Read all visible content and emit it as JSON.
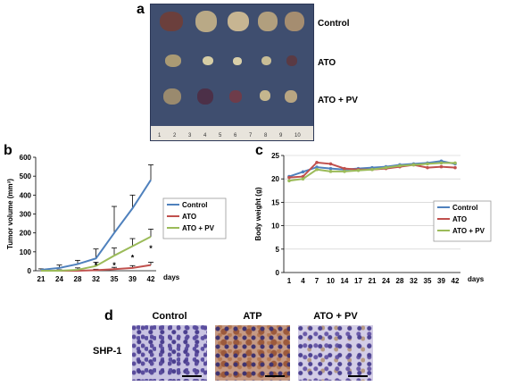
{
  "panels": {
    "a": "a",
    "b": "b",
    "c": "c",
    "d": "d"
  },
  "photo_panel": {
    "groups": [
      "Control",
      "ATO",
      "ATO + PV"
    ],
    "ruler_numbers": [
      "1",
      "2",
      "3",
      "4",
      "5",
      "6",
      "7",
      "8",
      "9",
      "10"
    ]
  },
  "chart_data": [
    {
      "type": "line",
      "ylabel": "Tumor volume (mm³)",
      "xlabel": "days",
      "x": [
        21,
        24,
        28,
        32,
        35,
        39,
        42
      ],
      "ylim": [
        0,
        600
      ],
      "yticks": [
        0,
        100,
        200,
        300,
        400,
        500,
        600
      ],
      "series": [
        {
          "name": "Control",
          "color": "#4f81bd",
          "values": [
            5,
            15,
            35,
            65,
            200,
            330,
            480
          ],
          "errors": [
            5,
            15,
            20,
            50,
            140,
            70,
            80
          ]
        },
        {
          "name": "ATO",
          "color": "#c0504d",
          "values": [
            0,
            0,
            0,
            3,
            8,
            15,
            30
          ],
          "errors": [
            0,
            0,
            0,
            5,
            10,
            12,
            15
          ]
        },
        {
          "name": "ATO + PV",
          "color": "#9bbb59",
          "values": [
            0,
            0,
            5,
            25,
            80,
            130,
            180
          ],
          "errors": [
            0,
            5,
            10,
            20,
            40,
            40,
            40
          ]
        }
      ],
      "annotations": [
        "*",
        "*",
        "*",
        "*"
      ]
    },
    {
      "type": "line",
      "ylabel": "Body weight (g)",
      "xlabel": "days",
      "x": [
        1,
        4,
        7,
        10,
        14,
        17,
        21,
        24,
        28,
        32,
        35,
        39,
        42
      ],
      "ylim": [
        0,
        25
      ],
      "yticks": [
        0,
        5,
        10,
        15,
        20,
        25
      ],
      "series": [
        {
          "name": "Control",
          "color": "#4f81bd",
          "values": [
            20.5,
            21.5,
            22.5,
            22.2,
            22.0,
            22.2,
            22.4,
            22.6,
            23.0,
            23.2,
            23.4,
            23.8,
            23.2
          ]
        },
        {
          "name": "ATO",
          "color": "#c0504d",
          "values": [
            20.3,
            20.5,
            23.5,
            23.2,
            22.2,
            22.0,
            22.0,
            22.2,
            22.6,
            23.0,
            22.4,
            22.6,
            22.4
          ]
        },
        {
          "name": "ATO + PV",
          "color": "#9bbb59",
          "values": [
            19.6,
            20.0,
            22.0,
            21.6,
            21.6,
            21.8,
            22.0,
            22.4,
            22.8,
            23.0,
            23.2,
            23.4,
            23.4
          ]
        }
      ]
    }
  ],
  "micrographs": {
    "row_label": "SHP-1",
    "columns": [
      "Control",
      "ATP",
      "ATO + PV"
    ]
  }
}
